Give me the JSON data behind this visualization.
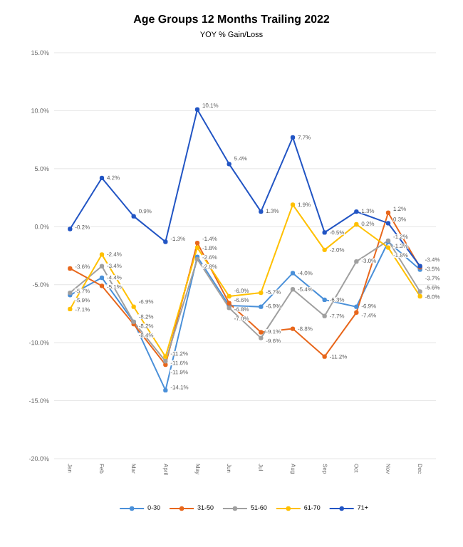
{
  "chart_data": {
    "type": "line",
    "title": "Age Groups 12 Months Trailing 2022",
    "subtitle": "YOY % Gain/Loss",
    "categories": [
      "Jan",
      "Feb",
      "Mar",
      "April",
      "May",
      "Jun",
      "Jul",
      "Aug",
      "Sep",
      "Oct",
      "Nov",
      "Dec"
    ],
    "ylim": [
      -20,
      15
    ],
    "yticks": [
      {
        "value": -20,
        "label": "-20.0%"
      },
      {
        "value": -15,
        "label": "-15.0%"
      },
      {
        "value": -10,
        "label": "-10.0%"
      },
      {
        "value": -5,
        "label": "-5.0%"
      },
      {
        "value": 0,
        "label": "0.0%"
      },
      {
        "value": 5,
        "label": "5.0%"
      },
      {
        "value": 10,
        "label": "10.0%"
      },
      {
        "value": 15,
        "label": "15.0%"
      }
    ],
    "grid": "y",
    "legend": "bottom",
    "marker": "circle",
    "line_style": "solid",
    "series": [
      {
        "name": "0-30",
        "color": "#4a90d9",
        "values": [
          -5.9,
          -4.4,
          -8.2,
          -14.1,
          -2.6,
          -6.8,
          -6.9,
          -4.0,
          -6.3,
          -6.9,
          -1.3,
          -3.7
        ],
        "value_labels": [
          "-5.9%",
          "-4.4%",
          "-8.2%",
          "-14.1%",
          "-2.6%",
          "-6.8%",
          "-6.9%",
          "-4.0%",
          "-6.3%",
          "-6.9%",
          "-1.3%",
          "-3.7%"
        ]
      },
      {
        "name": "31-50",
        "color": "#e8671c",
        "values": [
          -3.6,
          -5.1,
          -8.4,
          -11.9,
          -1.4,
          -6.6,
          -9.1,
          -8.8,
          -11.2,
          -7.4,
          1.2,
          -3.5
        ],
        "value_labels": [
          "-3.6%",
          "-5.1%",
          "-8.4%",
          "-11.9%",
          "-1.4%",
          "-6.6%",
          "-9.1%",
          "-8.8%",
          "-11.2%",
          "-7.4%",
          "1.2%",
          "-3.5%"
        ]
      },
      {
        "name": "51-60",
        "color": "#a0a0a0",
        "values": [
          -5.7,
          -3.4,
          -8.2,
          -11.6,
          -2.8,
          -7.0,
          -9.6,
          -5.4,
          -7.7,
          -3.0,
          -1.2,
          -5.6
        ],
        "value_labels": [
          "-5.7%",
          "-3.4%",
          "-8.2%",
          "-11.6%",
          "-2.8%",
          "-7.0%",
          "-9.6%",
          "-5.4%",
          "-7.7%",
          "-3.0%",
          "-1.2%",
          "-5.6%"
        ]
      },
      {
        "name": "61-70",
        "color": "#ffc000",
        "values": [
          -7.1,
          -2.4,
          -6.9,
          -11.2,
          -1.8,
          -6.0,
          -5.7,
          1.9,
          -2.0,
          0.2,
          -1.8,
          -6.0
        ],
        "value_labels": [
          "-7.1%",
          "-2.4%",
          "-6.9%",
          "-11.2%",
          "-1.8%",
          "-6.0%",
          "-5.7%",
          "1.9%",
          "-2.0%",
          "0.2%",
          "-1.8%",
          "-6.0%"
        ]
      },
      {
        "name": "71+",
        "color": "#2255c4",
        "values": [
          -0.2,
          4.2,
          0.9,
          -1.3,
          10.1,
          5.4,
          1.3,
          7.7,
          -0.5,
          1.3,
          0.3,
          -3.4
        ],
        "value_labels": [
          "-0.2%",
          "4.2%",
          "0.9%",
          "-1.3%",
          "10.1%",
          "5.4%",
          "1.3%",
          "7.7%",
          "-0.5%",
          "1.3%",
          "0.3%",
          "-3.4%"
        ]
      }
    ]
  }
}
